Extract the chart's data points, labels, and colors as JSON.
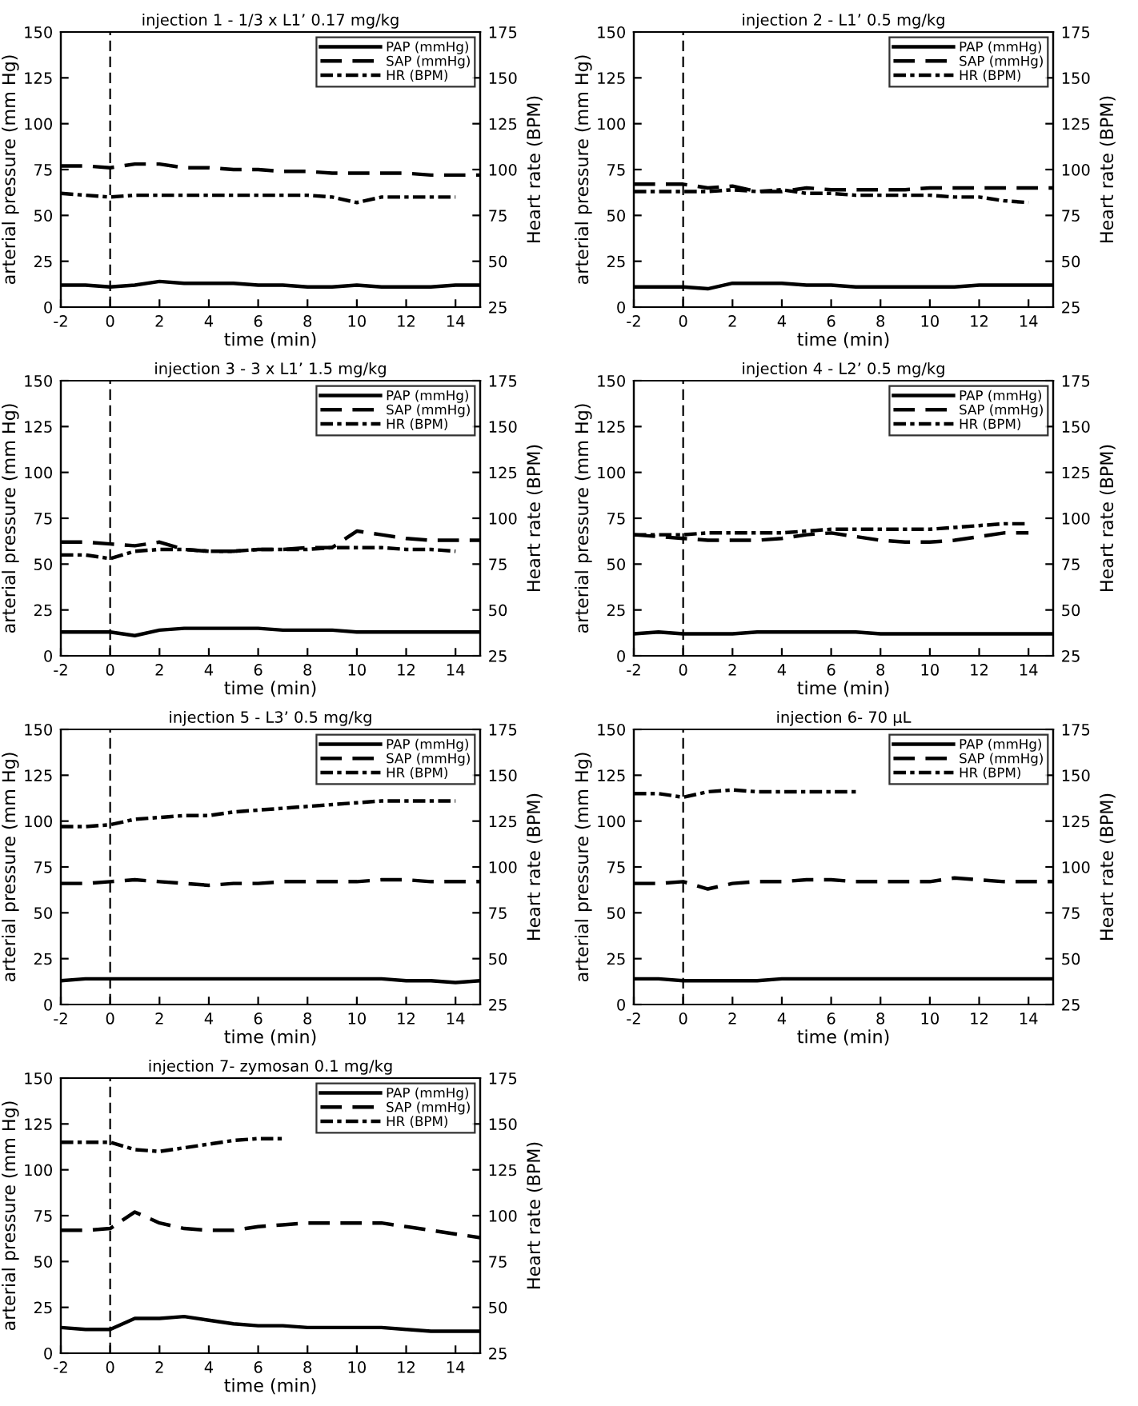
{
  "chart_data": [
    {
      "type": "line",
      "title": "injection 1 - 1/3 x L1’ 0.17 mg/kg",
      "xlabel": "time (min)",
      "ylabel": "arterial pressure (mm Hg)",
      "y2label": "Heart rate (BPM)",
      "xlim": [
        -2,
        15
      ],
      "xticks": [
        -2,
        0,
        2,
        4,
        6,
        8,
        10,
        12,
        14
      ],
      "ylim": [
        0,
        150
      ],
      "yticks": [
        0,
        25,
        50,
        75,
        100,
        125,
        150
      ],
      "y2lim": [
        25,
        175
      ],
      "y2ticks": [
        25,
        50,
        75,
        100,
        125,
        150,
        175
      ],
      "legend": "top right",
      "ref_lines": [
        {
          "axis": "x",
          "value": 0,
          "color": "#000000",
          "line_style": "dashed"
        }
      ],
      "series": [
        {
          "name": "PAP (mmHg)",
          "color": "#000000",
          "line_style": "solid",
          "x": [
            -2,
            -1,
            0,
            1,
            2,
            3,
            4,
            5,
            6,
            7,
            8,
            9,
            10,
            11,
            12,
            13,
            14,
            15
          ],
          "values": [
            12,
            12,
            11,
            12,
            14,
            13,
            13,
            13,
            12,
            12,
            11,
            11,
            12,
            11,
            11,
            11,
            12,
            12
          ]
        },
        {
          "name": "SAP (mmHg)",
          "color": "#000000",
          "line_style": "dashed",
          "x": [
            -2,
            -1,
            0,
            1,
            2,
            3,
            4,
            5,
            6,
            7,
            8,
            9,
            10,
            11,
            12,
            13,
            14,
            15
          ],
          "values": [
            77,
            77,
            76,
            78,
            78,
            76,
            76,
            75,
            75,
            74,
            74,
            73,
            73,
            73,
            73,
            72,
            72,
            72
          ]
        },
        {
          "name": "HR (BPM)",
          "color": "#000000",
          "line_style": "dashdot",
          "axis": "y2",
          "x": [
            -2,
            -1,
            0,
            1,
            2,
            3,
            4,
            5,
            6,
            7,
            8,
            9,
            10,
            11,
            12,
            13,
            14
          ],
          "values": [
            87,
            86,
            85,
            86,
            86,
            86,
            86,
            86,
            86,
            86,
            86,
            85,
            82,
            85,
            85,
            85,
            85
          ]
        }
      ]
    },
    {
      "type": "line",
      "title": "injection 2 - L1’ 0.5 mg/kg",
      "xlabel": "time (min)",
      "ylabel": "arterial pressure (mm Hg)",
      "y2label": "Heart rate (BPM)",
      "xlim": [
        -2,
        15
      ],
      "xticks": [
        -2,
        0,
        2,
        4,
        6,
        8,
        10,
        12,
        14
      ],
      "ylim": [
        0,
        150
      ],
      "yticks": [
        0,
        25,
        50,
        75,
        100,
        125,
        150
      ],
      "y2lim": [
        25,
        175
      ],
      "y2ticks": [
        25,
        50,
        75,
        100,
        125,
        150,
        175
      ],
      "legend": "top right",
      "ref_lines": [
        {
          "axis": "x",
          "value": 0,
          "color": "#000000",
          "line_style": "dashed"
        }
      ],
      "series": [
        {
          "name": "PAP (mmHg)",
          "color": "#000000",
          "line_style": "solid",
          "x": [
            -2,
            -1,
            0,
            1,
            2,
            3,
            4,
            5,
            6,
            7,
            8,
            9,
            10,
            11,
            12,
            13,
            14,
            15
          ],
          "values": [
            11,
            11,
            11,
            10,
            13,
            13,
            13,
            12,
            12,
            11,
            11,
            11,
            11,
            11,
            12,
            12,
            12,
            12
          ]
        },
        {
          "name": "SAP (mmHg)",
          "color": "#000000",
          "line_style": "dashed",
          "x": [
            -2,
            -1,
            0,
            1,
            2,
            3,
            4,
            5,
            6,
            7,
            8,
            9,
            10,
            11,
            12,
            13,
            14,
            15
          ],
          "values": [
            67,
            67,
            67,
            65,
            66,
            63,
            63,
            65,
            64,
            64,
            64,
            64,
            65,
            65,
            65,
            65,
            65,
            65
          ]
        },
        {
          "name": "HR (BPM)",
          "color": "#000000",
          "line_style": "dashdot",
          "axis": "y2",
          "x": [
            -2,
            -1,
            0,
            1,
            2,
            3,
            4,
            5,
            6,
            7,
            8,
            9,
            10,
            11,
            12,
            13,
            14
          ],
          "values": [
            88,
            88,
            88,
            88,
            89,
            88,
            89,
            87,
            87,
            86,
            86,
            86,
            86,
            85,
            85,
            83,
            82
          ]
        }
      ]
    },
    {
      "type": "line",
      "title": "injection 3 - 3 x L1’ 1.5 mg/kg",
      "xlabel": "time (min)",
      "ylabel": "arterial pressure (mm Hg)",
      "y2label": "Heart rate (BPM)",
      "xlim": [
        -2,
        15
      ],
      "xticks": [
        -2,
        0,
        2,
        4,
        6,
        8,
        10,
        12,
        14
      ],
      "ylim": [
        0,
        150
      ],
      "yticks": [
        0,
        25,
        50,
        75,
        100,
        125,
        150
      ],
      "y2lim": [
        25,
        175
      ],
      "y2ticks": [
        25,
        50,
        75,
        100,
        125,
        150,
        175
      ],
      "legend": "top right",
      "ref_lines": [
        {
          "axis": "x",
          "value": 0,
          "color": "#000000",
          "line_style": "dashed"
        }
      ],
      "series": [
        {
          "name": "PAP (mmHg)",
          "color": "#000000",
          "line_style": "solid",
          "x": [
            -2,
            -1,
            0,
            1,
            2,
            3,
            4,
            5,
            6,
            7,
            8,
            9,
            10,
            11,
            12,
            13,
            14,
            15
          ],
          "values": [
            13,
            13,
            13,
            11,
            14,
            15,
            15,
            15,
            15,
            14,
            14,
            14,
            13,
            13,
            13,
            13,
            13,
            13
          ]
        },
        {
          "name": "SAP (mmHg)",
          "color": "#000000",
          "line_style": "dashed",
          "x": [
            -2,
            -1,
            0,
            1,
            2,
            3,
            4,
            5,
            6,
            7,
            8,
            9,
            10,
            11,
            12,
            13,
            14,
            15
          ],
          "values": [
            62,
            62,
            61,
            60,
            62,
            58,
            57,
            57,
            58,
            58,
            59,
            59,
            68,
            66,
            64,
            63,
            63,
            63
          ]
        },
        {
          "name": "HR (BPM)",
          "color": "#000000",
          "line_style": "dashdot",
          "axis": "y2",
          "x": [
            -2,
            -1,
            0,
            1,
            2,
            3,
            4,
            5,
            6,
            7,
            8,
            9,
            10,
            11,
            12,
            13,
            14
          ],
          "values": [
            80,
            80,
            78,
            82,
            83,
            83,
            82,
            82,
            83,
            83,
            83,
            84,
            84,
            84,
            83,
            83,
            82
          ]
        }
      ]
    },
    {
      "type": "line",
      "title": "injection 4 - L2’ 0.5 mg/kg",
      "xlabel": "time (min)",
      "ylabel": "arterial pressure (mm Hg)",
      "y2label": "Heart rate (BPM)",
      "xlim": [
        -2,
        15
      ],
      "xticks": [
        -2,
        0,
        2,
        4,
        6,
        8,
        10,
        12,
        14
      ],
      "ylim": [
        0,
        150
      ],
      "yticks": [
        0,
        25,
        50,
        75,
        100,
        125,
        150
      ],
      "y2lim": [
        25,
        175
      ],
      "y2ticks": [
        25,
        50,
        75,
        100,
        125,
        150,
        175
      ],
      "legend": "top right",
      "ref_lines": [
        {
          "axis": "x",
          "value": 0,
          "color": "#000000",
          "line_style": "dashed"
        }
      ],
      "series": [
        {
          "name": "PAP (mmHg)",
          "color": "#000000",
          "line_style": "solid",
          "x": [
            -2,
            -1,
            0,
            1,
            2,
            3,
            4,
            5,
            6,
            7,
            8,
            9,
            10,
            11,
            12,
            13,
            14,
            15
          ],
          "values": [
            12,
            13,
            12,
            12,
            12,
            13,
            13,
            13,
            13,
            13,
            12,
            12,
            12,
            12,
            12,
            12,
            12,
            12
          ]
        },
        {
          "name": "SAP (mmHg)",
          "color": "#000000",
          "line_style": "dashed",
          "x": [
            -2,
            -1,
            0,
            1,
            2,
            3,
            4,
            5,
            6,
            7,
            8,
            9,
            10,
            11,
            12,
            13,
            14
          ],
          "values": [
            66,
            65,
            64,
            63,
            63,
            63,
            64,
            66,
            67,
            65,
            63,
            62,
            62,
            63,
            65,
            67,
            67
          ]
        },
        {
          "name": "HR (BPM)",
          "color": "#000000",
          "line_style": "dashdot",
          "axis": "y2",
          "x": [
            -2,
            -1,
            0,
            1,
            2,
            3,
            4,
            5,
            6,
            7,
            8,
            9,
            10,
            11,
            12,
            13,
            14
          ],
          "values": [
            91,
            91,
            91,
            92,
            92,
            92,
            92,
            93,
            94,
            94,
            94,
            94,
            94,
            95,
            96,
            97,
            97
          ]
        }
      ]
    },
    {
      "type": "line",
      "title": "injection 5 - L3’ 0.5 mg/kg",
      "xlabel": "time (min)",
      "ylabel": "arterial pressure (mm Hg)",
      "y2label": "Heart rate (BPM)",
      "xlim": [
        -2,
        15
      ],
      "xticks": [
        -2,
        0,
        2,
        4,
        6,
        8,
        10,
        12,
        14
      ],
      "ylim": [
        0,
        150
      ],
      "yticks": [
        0,
        25,
        50,
        75,
        100,
        125,
        150
      ],
      "y2lim": [
        25,
        175
      ],
      "y2ticks": [
        25,
        50,
        75,
        100,
        125,
        150,
        175
      ],
      "legend": "top right",
      "ref_lines": [
        {
          "axis": "x",
          "value": 0,
          "color": "#000000",
          "line_style": "dashed"
        }
      ],
      "series": [
        {
          "name": "PAP (mmHg)",
          "color": "#000000",
          "line_style": "solid",
          "x": [
            -2,
            -1,
            0,
            1,
            2,
            3,
            4,
            5,
            6,
            7,
            8,
            9,
            10,
            11,
            12,
            13,
            14,
            15
          ],
          "values": [
            13,
            14,
            14,
            14,
            14,
            14,
            14,
            14,
            14,
            14,
            14,
            14,
            14,
            14,
            13,
            13,
            12,
            13
          ]
        },
        {
          "name": "SAP (mmHg)",
          "color": "#000000",
          "line_style": "dashed",
          "x": [
            -2,
            -1,
            0,
            1,
            2,
            3,
            4,
            5,
            6,
            7,
            8,
            9,
            10,
            11,
            12,
            13,
            14,
            15
          ],
          "values": [
            66,
            66,
            67,
            68,
            67,
            66,
            65,
            66,
            66,
            67,
            67,
            67,
            67,
            68,
            68,
            67,
            67,
            67
          ]
        },
        {
          "name": "HR (BPM)",
          "color": "#000000",
          "line_style": "dashdot",
          "axis": "y2",
          "x": [
            -2,
            -1,
            0,
            1,
            2,
            3,
            4,
            5,
            6,
            7,
            8,
            9,
            10,
            11,
            12,
            13,
            14
          ],
          "values": [
            122,
            122,
            123,
            126,
            127,
            128,
            128,
            130,
            131,
            132,
            133,
            134,
            135,
            136,
            136,
            136,
            136
          ]
        }
      ]
    },
    {
      "type": "line",
      "title": "injection 6- 70 µL",
      "xlabel": "time (min)",
      "ylabel": "arterial pressure (mm Hg)",
      "y2label": "Heart rate (BPM)",
      "xlim": [
        -2,
        15
      ],
      "xticks": [
        -2,
        0,
        2,
        4,
        6,
        8,
        10,
        12,
        14
      ],
      "ylim": [
        0,
        150
      ],
      "yticks": [
        0,
        25,
        50,
        75,
        100,
        125,
        150
      ],
      "y2lim": [
        25,
        175
      ],
      "y2ticks": [
        25,
        50,
        75,
        100,
        125,
        150,
        175
      ],
      "legend": "top right",
      "ref_lines": [
        {
          "axis": "x",
          "value": 0,
          "color": "#000000",
          "line_style": "dashed"
        }
      ],
      "series": [
        {
          "name": "PAP (mmHg)",
          "color": "#000000",
          "line_style": "solid",
          "x": [
            -2,
            -1,
            0,
            1,
            2,
            3,
            4,
            5,
            6,
            7,
            8,
            9,
            10,
            11,
            12,
            13,
            14,
            15
          ],
          "values": [
            14,
            14,
            13,
            13,
            13,
            13,
            14,
            14,
            14,
            14,
            14,
            14,
            14,
            14,
            14,
            14,
            14,
            14
          ]
        },
        {
          "name": "SAP (mmHg)",
          "color": "#000000",
          "line_style": "dashed",
          "x": [
            -2,
            -1,
            0,
            1,
            2,
            3,
            4,
            5,
            6,
            7,
            8,
            9,
            10,
            11,
            12,
            13,
            14,
            15
          ],
          "values": [
            66,
            66,
            67,
            63,
            66,
            67,
            67,
            68,
            68,
            67,
            67,
            67,
            67,
            69,
            68,
            67,
            67,
            67
          ]
        },
        {
          "name": "HR (BPM)",
          "color": "#000000",
          "line_style": "dashdot",
          "axis": "y2",
          "x": [
            -2,
            -1,
            0,
            1,
            2,
            3,
            4,
            5,
            6,
            7
          ],
          "values": [
            140,
            140,
            138,
            141,
            142,
            141,
            141,
            141,
            141,
            141
          ]
        }
      ]
    },
    {
      "type": "line",
      "title": "injection 7- zymosan 0.1 mg/kg",
      "xlabel": "time (min)",
      "ylabel": "arterial pressure (mm Hg)",
      "y2label": "Heart rate (BPM)",
      "xlim": [
        -2,
        15
      ],
      "xticks": [
        -2,
        0,
        2,
        4,
        6,
        8,
        10,
        12,
        14
      ],
      "ylim": [
        0,
        150
      ],
      "yticks": [
        0,
        25,
        50,
        75,
        100,
        125,
        150
      ],
      "y2lim": [
        25,
        175
      ],
      "y2ticks": [
        25,
        50,
        75,
        100,
        125,
        150,
        175
      ],
      "legend": "top right",
      "ref_lines": [
        {
          "axis": "x",
          "value": 0,
          "color": "#000000",
          "line_style": "dashed"
        }
      ],
      "series": [
        {
          "name": "PAP (mmHg)",
          "color": "#000000",
          "line_style": "solid",
          "x": [
            -2,
            -1,
            0,
            1,
            2,
            3,
            4,
            5,
            6,
            7,
            8,
            9,
            10,
            11,
            12,
            13,
            14,
            15
          ],
          "values": [
            14,
            13,
            13,
            19,
            19,
            20,
            18,
            16,
            15,
            15,
            14,
            14,
            14,
            14,
            13,
            12,
            12,
            12
          ]
        },
        {
          "name": "SAP (mmHg)",
          "color": "#000000",
          "line_style": "dashed",
          "x": [
            -2,
            -1,
            0,
            1,
            2,
            3,
            4,
            5,
            6,
            7,
            8,
            9,
            10,
            11,
            12,
            13,
            14,
            15
          ],
          "values": [
            67,
            67,
            68,
            77,
            71,
            68,
            67,
            67,
            69,
            70,
            71,
            71,
            71,
            71,
            69,
            67,
            65,
            63
          ]
        },
        {
          "name": "HR (BPM)",
          "color": "#000000",
          "line_style": "dashdot",
          "axis": "y2",
          "x": [
            -2,
            -1,
            0,
            1,
            2,
            3,
            4,
            5,
            6,
            7
          ],
          "values": [
            140,
            140,
            140,
            136,
            135,
            137,
            139,
            141,
            142,
            142
          ]
        }
      ]
    }
  ]
}
